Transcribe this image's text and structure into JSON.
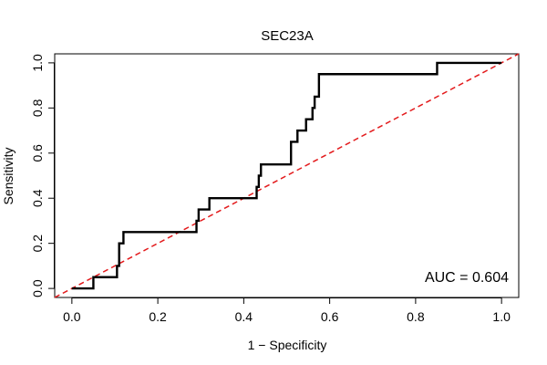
{
  "chart_data": {
    "type": "line",
    "title": "SEC23A",
    "xlabel": "1 − Specificity",
    "ylabel": "Sensitivity",
    "xlim": [
      -0.04,
      1.04
    ],
    "ylim": [
      -0.04,
      1.04
    ],
    "x_ticks": [
      "0.0",
      "0.2",
      "0.4",
      "0.6",
      "0.8",
      "1.0"
    ],
    "y_ticks": [
      "0.0",
      "0.2",
      "0.4",
      "0.6",
      "0.8",
      "1.0"
    ],
    "grid": false,
    "annotation": "AUC = 0.604",
    "series": [
      {
        "style": "solid",
        "color": "#000000",
        "x": [
          0.0,
          0.05,
          0.05,
          0.105,
          0.105,
          0.11,
          0.11,
          0.12,
          0.12,
          0.29,
          0.29,
          0.295,
          0.295,
          0.32,
          0.32,
          0.43,
          0.43,
          0.435,
          0.435,
          0.44,
          0.44,
          0.45,
          0.45,
          0.51,
          0.51,
          0.525,
          0.525,
          0.545,
          0.545,
          0.56,
          0.56,
          0.565,
          0.565,
          0.575,
          0.575,
          0.85,
          0.85,
          1.0
        ],
        "y": [
          0.0,
          0.0,
          0.05,
          0.05,
          0.1,
          0.1,
          0.2,
          0.2,
          0.25,
          0.25,
          0.3,
          0.3,
          0.35,
          0.35,
          0.4,
          0.4,
          0.45,
          0.45,
          0.5,
          0.5,
          0.55,
          0.55,
          0.55,
          0.55,
          0.65,
          0.65,
          0.7,
          0.7,
          0.75,
          0.75,
          0.8,
          0.8,
          0.85,
          0.85,
          0.95,
          0.95,
          1.0,
          1.0
        ]
      },
      {
        "style": "dashed",
        "color": "#e31a1c",
        "x": [
          -0.04,
          1.04
        ],
        "y": [
          -0.04,
          1.04
        ]
      }
    ]
  }
}
